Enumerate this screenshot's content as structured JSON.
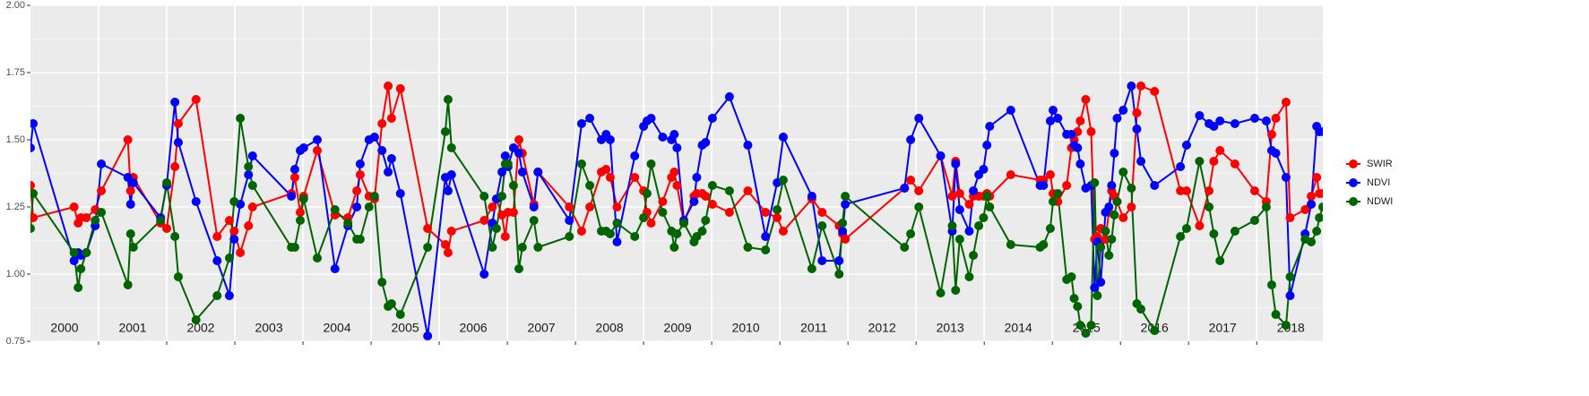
{
  "chart_data": {
    "type": "line",
    "annotations": [
      "2000",
      "2001",
      "2002",
      "2003",
      "2004",
      "2005",
      "2006",
      "2007",
      "2008",
      "2009",
      "2010",
      "2011",
      "2012",
      "2013",
      "2014",
      "2015",
      "2016",
      "2017",
      "2018"
    ],
    "x": [
      2000.0,
      2000.04,
      2000.64,
      2000.7,
      2000.74,
      2000.82,
      2000.95,
      2001.04,
      2001.43,
      2001.47,
      2001.51,
      2001.91,
      2002.0,
      2002.12,
      2002.17,
      2002.43,
      2002.74,
      2002.92,
      2002.99,
      2003.08,
      2003.2,
      2003.26,
      2003.83,
      2003.88,
      2003.96,
      2004.01,
      2004.21,
      2004.47,
      2004.66,
      2004.79,
      2004.84,
      2004.97,
      2005.05,
      2005.16,
      2005.25,
      2005.3,
      2005.43,
      2005.83,
      2006.09,
      2006.13,
      2006.18,
      2006.66,
      2006.78,
      2006.84,
      2006.92,
      2006.97,
      2007.01,
      2007.09,
      2007.17,
      2007.22,
      2007.39,
      2007.45,
      2007.91,
      2008.09,
      2008.21,
      2008.38,
      2008.45,
      2008.51,
      2008.61,
      2008.87,
      2009.0,
      2009.05,
      2009.11,
      2009.28,
      2009.41,
      2009.45,
      2009.49,
      2009.59,
      2009.74,
      2009.78,
      2009.86,
      2009.91,
      2010.01,
      2010.26,
      2010.53,
      2010.79,
      2010.96,
      2011.05,
      2011.47,
      2011.62,
      2011.87,
      2011.92,
      2011.96,
      2012.83,
      2012.92,
      2013.04,
      2013.36,
      2013.53,
      2013.58,
      2013.64,
      2013.78,
      2013.84,
      2013.92,
      2013.99,
      2014.04,
      2014.08,
      2014.39,
      2014.82,
      2014.87,
      2014.97,
      2015.01,
      2015.08,
      2015.21,
      2015.28,
      2015.32,
      2015.37,
      2015.41,
      2015.49,
      2015.57,
      2015.62,
      2015.66,
      2015.71,
      2015.78,
      2015.83,
      2015.87,
      2015.91,
      2015.95,
      2016.04,
      2016.16,
      2016.24,
      2016.3,
      2016.5,
      2016.88,
      2016.97,
      2017.16,
      2017.3,
      2017.37,
      2017.46,
      2017.68,
      2017.97,
      2018.14,
      2018.22,
      2018.28,
      2018.43,
      2018.49,
      2018.71,
      2018.8,
      2018.88,
      2018.92,
      2018.97
    ],
    "series": [
      {
        "name": "SWIR",
        "color": "#ff0000",
        "values": [
          1.33,
          1.21,
          1.25,
          1.19,
          1.21,
          1.21,
          1.24,
          1.31,
          1.5,
          1.31,
          1.36,
          1.19,
          1.17,
          1.4,
          1.56,
          1.65,
          1.14,
          1.2,
          1.16,
          1.08,
          1.18,
          1.25,
          1.3,
          1.36,
          1.23,
          1.29,
          1.46,
          1.22,
          1.21,
          1.31,
          1.37,
          1.29,
          1.28,
          1.56,
          1.7,
          1.58,
          1.69,
          1.17,
          1.11,
          1.08,
          1.16,
          1.2,
          1.25,
          1.28,
          1.22,
          1.14,
          1.23,
          1.23,
          1.5,
          1.45,
          1.26,
          1.38,
          1.25,
          1.16,
          1.25,
          1.38,
          1.39,
          1.36,
          1.25,
          1.36,
          1.31,
          1.23,
          1.19,
          1.27,
          1.36,
          1.38,
          1.33,
          1.19,
          1.29,
          1.3,
          1.3,
          1.29,
          1.26,
          1.23,
          1.31,
          1.23,
          1.21,
          1.16,
          1.28,
          1.23,
          1.18,
          1.15,
          1.13,
          1.32,
          1.35,
          1.31,
          1.44,
          1.29,
          1.42,
          1.3,
          1.26,
          1.29,
          1.29,
          1.29,
          1.3,
          1.29,
          1.37,
          1.35,
          1.35,
          1.37,
          1.3,
          1.27,
          1.33,
          1.47,
          1.5,
          1.53,
          1.57,
          1.65,
          1.53,
          1.13,
          1.14,
          1.17,
          1.13,
          1.23,
          1.31,
          1.29,
          1.27,
          1.21,
          1.25,
          1.6,
          1.7,
          1.68,
          1.31,
          1.31,
          1.18,
          1.31,
          1.42,
          1.46,
          1.41,
          1.31,
          1.27,
          1.52,
          1.58,
          1.64,
          1.21,
          1.24,
          1.29,
          1.36,
          1.3,
          1.3
        ]
      },
      {
        "name": "NDVI",
        "color": "#0000ff",
        "values": [
          1.47,
          1.56,
          1.05,
          1.08,
          1.07,
          1.08,
          1.18,
          1.41,
          1.36,
          1.26,
          1.34,
          1.21,
          1.33,
          1.64,
          1.49,
          1.27,
          1.05,
          0.92,
          1.13,
          1.26,
          1.37,
          1.44,
          1.29,
          1.39,
          1.46,
          1.47,
          1.5,
          1.02,
          1.18,
          1.25,
          1.41,
          1.5,
          1.51,
          1.46,
          1.38,
          1.43,
          1.3,
          0.77,
          1.36,
          1.31,
          1.37,
          1.0,
          1.19,
          1.28,
          1.38,
          1.44,
          1.4,
          1.47,
          1.45,
          1.38,
          1.25,
          1.38,
          1.2,
          1.56,
          1.58,
          1.5,
          1.52,
          1.5,
          1.12,
          1.44,
          1.55,
          1.57,
          1.58,
          1.51,
          1.5,
          1.52,
          1.47,
          1.2,
          1.27,
          1.36,
          1.48,
          1.49,
          1.58,
          1.66,
          1.48,
          1.14,
          1.34,
          1.51,
          1.29,
          1.05,
          1.05,
          1.16,
          1.26,
          1.32,
          1.5,
          1.58,
          1.44,
          1.16,
          1.41,
          1.24,
          1.16,
          1.31,
          1.37,
          1.39,
          1.48,
          1.55,
          1.61,
          1.33,
          1.33,
          1.57,
          1.61,
          1.58,
          1.52,
          1.52,
          1.48,
          1.47,
          1.41,
          1.32,
          1.33,
          0.95,
          1.12,
          0.97,
          1.23,
          1.25,
          1.33,
          1.45,
          1.58,
          1.61,
          1.7,
          1.54,
          1.42,
          1.33,
          1.4,
          1.48,
          1.59,
          1.56,
          1.55,
          1.57,
          1.56,
          1.58,
          1.57,
          1.46,
          1.45,
          1.36,
          0.92,
          1.15,
          1.26,
          1.55,
          1.53,
          1.53
        ]
      },
      {
        "name": "NDWI",
        "color": "#006400",
        "values": [
          1.17,
          1.3,
          1.08,
          0.95,
          1.02,
          1.08,
          1.2,
          1.23,
          0.96,
          1.15,
          1.1,
          1.2,
          1.34,
          1.14,
          0.99,
          0.83,
          0.92,
          1.06,
          1.27,
          1.58,
          1.4,
          1.33,
          1.1,
          1.1,
          1.2,
          1.28,
          1.06,
          1.24,
          1.19,
          1.13,
          1.13,
          1.25,
          1.29,
          0.97,
          0.88,
          0.89,
          0.85,
          1.1,
          1.53,
          1.65,
          1.47,
          1.29,
          1.1,
          1.17,
          1.29,
          1.41,
          1.41,
          1.33,
          1.02,
          1.1,
          1.2,
          1.1,
          1.14,
          1.41,
          1.33,
          1.16,
          1.16,
          1.15,
          1.19,
          1.14,
          1.21,
          1.3,
          1.41,
          1.23,
          1.16,
          1.1,
          1.15,
          1.19,
          1.12,
          1.14,
          1.16,
          1.2,
          1.33,
          1.31,
          1.1,
          1.09,
          1.24,
          1.35,
          1.02,
          1.18,
          1.0,
          1.19,
          1.29,
          1.1,
          1.15,
          1.25,
          0.93,
          1.18,
          0.94,
          1.13,
          0.99,
          1.07,
          1.18,
          1.21,
          1.29,
          1.25,
          1.11,
          1.1,
          1.11,
          1.17,
          1.27,
          1.3,
          0.98,
          0.99,
          0.91,
          0.88,
          0.81,
          0.78,
          0.81,
          1.34,
          0.92,
          1.1,
          1.16,
          1.07,
          1.13,
          1.22,
          1.27,
          1.38,
          1.32,
          0.89,
          0.87,
          0.79,
          1.14,
          1.17,
          1.42,
          1.25,
          1.15,
          1.05,
          1.16,
          1.2,
          1.25,
          0.96,
          0.85,
          0.81,
          0.99,
          1.13,
          1.12,
          1.16,
          1.21,
          1.25
        ]
      }
    ],
    "xlim": [
      2000,
      2018.97
    ],
    "xticks": [
      2001,
      2002,
      2003,
      2004,
      2005,
      2006,
      2007,
      2008,
      2009,
      2010,
      2011,
      2012,
      2013,
      2014,
      2015,
      2016,
      2017,
      2018
    ],
    "ylim": [
      0.75,
      2.0
    ],
    "yticks": [
      {
        "value": 0.75,
        "label": "0.75"
      },
      {
        "value": 1.0,
        "label": "1.00"
      },
      {
        "value": 1.25,
        "label": "1.25"
      },
      {
        "value": 1.5,
        "label": "1.50"
      },
      {
        "value": 1.75,
        "label": "1.75"
      },
      {
        "value": 2.0,
        "label": "2.00"
      }
    ],
    "grid": true,
    "legend": "right"
  }
}
